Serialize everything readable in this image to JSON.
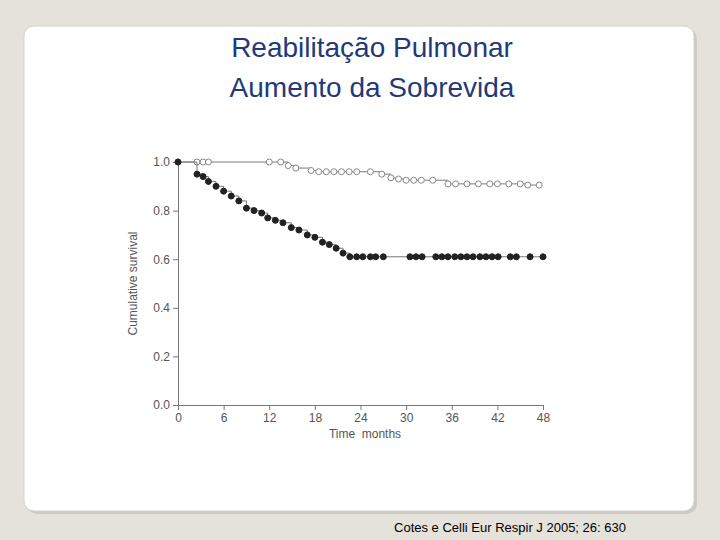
{
  "chart_data": {
    "type": "line",
    "title": "Reabilitação Pulmonar",
    "subtitle": "Aumento da Sobrevida",
    "annotations": [
      "Cotes e Celli Eur Respir J 2005; 26: 630"
    ],
    "x_label": "Time  months",
    "y_label": "Cumulative survival",
    "line_style": "step",
    "xlim": [
      0,
      48
    ],
    "xticks": [
      0,
      6,
      12,
      18,
      24,
      30,
      36,
      42,
      48
    ],
    "ylim": [
      0,
      1
    ],
    "yticks": [
      {
        "value": 0,
        "label": "0.0"
      },
      {
        "value": 0.2,
        "label": "0.2"
      },
      {
        "value": 0.4,
        "label": "0.4"
      },
      {
        "value": 0.6,
        "label": "0.6"
      },
      {
        "value": 0.8,
        "label": "0.8"
      },
      {
        "value": 1,
        "label": "1.0"
      }
    ],
    "series": [
      {
        "color": "#888888",
        "marker": "circle-open",
        "x": [
          0,
          2.5,
          3.3,
          4,
          12,
          13.5,
          14.5,
          15.5,
          17.5,
          18.5,
          19.5,
          20.5,
          21.5,
          22.5,
          23.5,
          25.3,
          26.8,
          28,
          29,
          30,
          31,
          32,
          33.5,
          35.5,
          36.5,
          38,
          39.5,
          41,
          42,
          43.5,
          45,
          46,
          47.5
        ],
        "values": [
          1,
          1,
          1,
          1,
          1,
          1,
          0.985,
          0.975,
          0.965,
          0.96,
          0.96,
          0.96,
          0.96,
          0.96,
          0.96,
          0.96,
          0.95,
          0.935,
          0.93,
          0.925,
          0.925,
          0.925,
          0.925,
          0.91,
          0.91,
          0.91,
          0.91,
          0.91,
          0.91,
          0.91,
          0.91,
          0.905,
          0.905
        ]
      },
      {
        "color": "#222222",
        "marker": "circle",
        "x": [
          0,
          2.5,
          3.3,
          4,
          5,
          6,
          7,
          8,
          9,
          10,
          11,
          11.8,
          12.8,
          13.8,
          14.9,
          15.9,
          17,
          18,
          19,
          19.9,
          20.8,
          21.7,
          22.6,
          23.5,
          24.3,
          25.3,
          26,
          27,
          30.5,
          31.3,
          32.1,
          33.9,
          34.7,
          35.5,
          36.4,
          37.2,
          38,
          38.8,
          39.7,
          40.5,
          41.3,
          42.1,
          43.7,
          44.5,
          46.3,
          48
        ],
        "values": [
          1,
          0.95,
          0.94,
          0.92,
          0.9,
          0.88,
          0.86,
          0.84,
          0.81,
          0.8,
          0.79,
          0.77,
          0.76,
          0.75,
          0.73,
          0.72,
          0.7,
          0.69,
          0.67,
          0.66,
          0.645,
          0.625,
          0.61,
          0.61,
          0.61,
          0.61,
          0.61,
          0.61,
          0.61,
          0.61,
          0.61,
          0.61,
          0.61,
          0.61,
          0.61,
          0.61,
          0.61,
          0.61,
          0.61,
          0.61,
          0.61,
          0.61,
          0.61,
          0.61,
          0.61,
          0.61
        ]
      }
    ]
  }
}
